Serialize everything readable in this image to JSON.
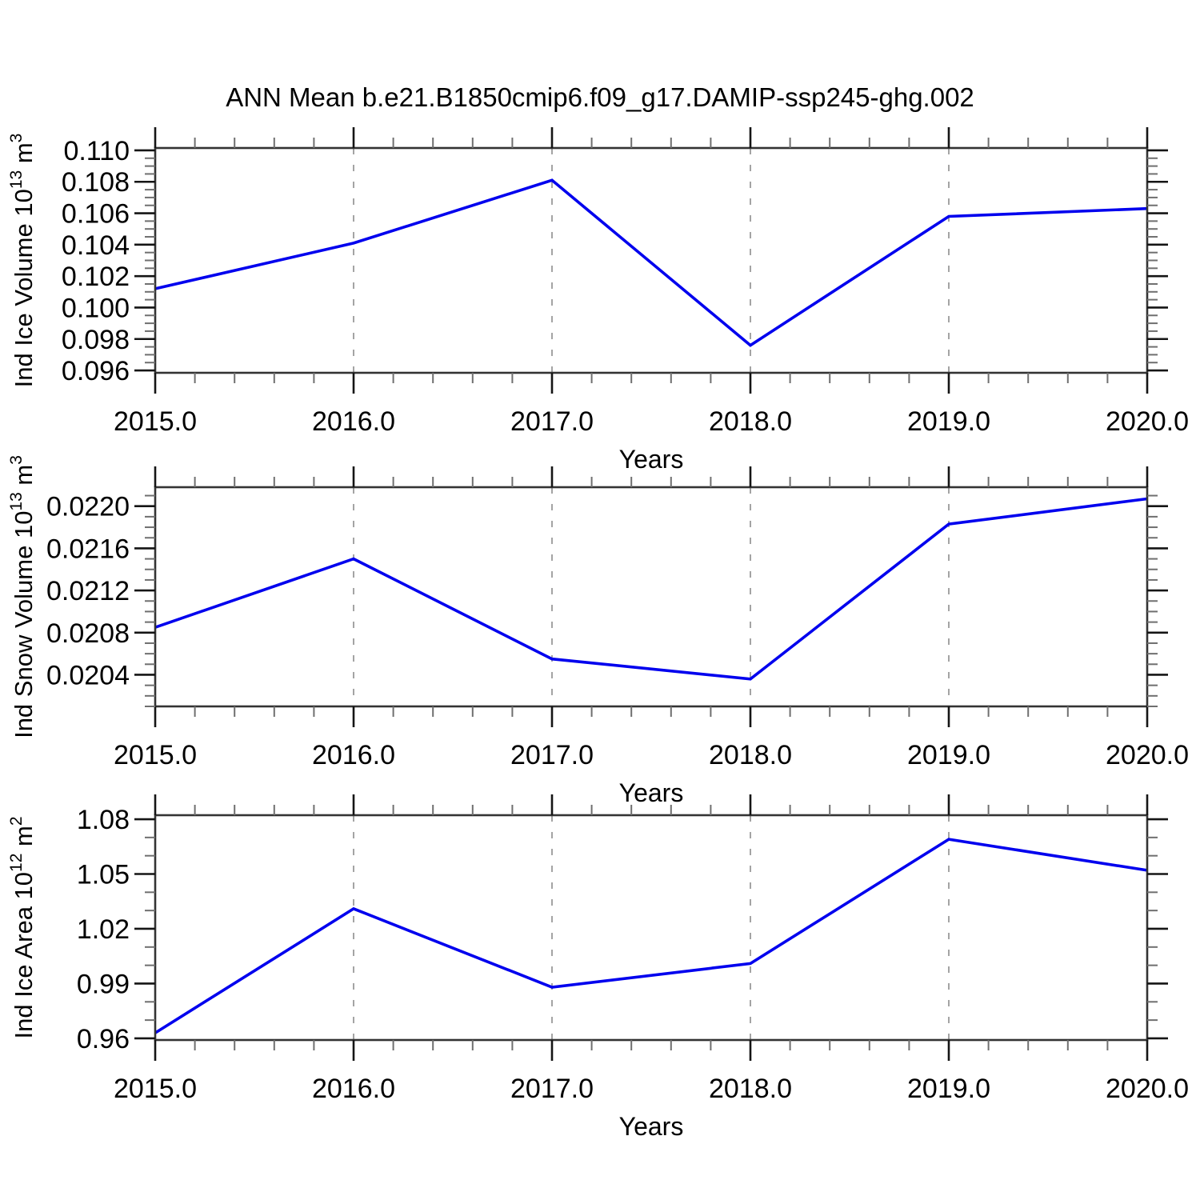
{
  "title": "ANN Mean b.e21.B1850cmip6.f09_g17.DAMIP-ssp245-ghg.002",
  "background_color": "#ffffff",
  "text_color": "#000000",
  "chart_data": [
    {
      "type": "line",
      "name": "ind-ice-volume",
      "x": [
        2015,
        2016,
        2017,
        2018,
        2019,
        2020
      ],
      "values": [
        0.1012,
        0.1041,
        0.1081,
        0.0976,
        0.1058,
        0.1063
      ],
      "ylabel": "Ind Ice Volume 10^13 m^3",
      "ylabel_segments": [
        [
          "Ind Ice Volume 10",
          false
        ],
        [
          "13",
          true
        ],
        [
          " m",
          false
        ],
        [
          "3",
          true
        ]
      ],
      "xlabel": "Years",
      "xlim": [
        2015,
        2020
      ],
      "ylim": [
        0.09585,
        0.11015
      ],
      "ytick_values": [
        0.11,
        0.108,
        0.106,
        0.104,
        0.102,
        0.1,
        0.098,
        0.096
      ],
      "ytick_labels": [
        "0.110",
        "0.108",
        "0.106",
        "0.104",
        "0.102",
        "0.100",
        "0.098",
        "0.096"
      ],
      "ytick_minor_step": 0.0005,
      "xtick_values": [
        2015,
        2016,
        2017,
        2018,
        2019,
        2020
      ],
      "xtick_labels": [
        "2015.0",
        "2016.0",
        "2017.0",
        "2018.0",
        "2019.0",
        "2020.0"
      ],
      "xtick_minor_step": 0.2,
      "grid_x": [
        2016,
        2017,
        2018,
        2019
      ],
      "grid_style": "dashed",
      "legend": "none",
      "line_color": "#0000ee"
    },
    {
      "type": "line",
      "name": "ind-snow-volume",
      "x": [
        2015,
        2016,
        2017,
        2018,
        2019,
        2020
      ],
      "values": [
        0.02085,
        0.0215,
        0.02055,
        0.02036,
        0.02183,
        0.02207
      ],
      "ylabel": "Ind Snow Volume 10^13 m^3",
      "ylabel_segments": [
        [
          "Ind Snow Volume 10",
          false
        ],
        [
          "13",
          true
        ],
        [
          " m",
          false
        ],
        [
          "3",
          true
        ]
      ],
      "xlabel": "Years",
      "xlim": [
        2015,
        2020
      ],
      "ylim": [
        0.0201,
        0.02218
      ],
      "ytick_values": [
        0.022,
        0.0216,
        0.0212,
        0.0208,
        0.0204
      ],
      "ytick_labels": [
        "0.0220",
        "0.0216",
        "0.0212",
        "0.0208",
        "0.0204"
      ],
      "ytick_minor_step": 0.0001,
      "xtick_values": [
        2015,
        2016,
        2017,
        2018,
        2019,
        2020
      ],
      "xtick_labels": [
        "2015.0",
        "2016.0",
        "2017.0",
        "2018.0",
        "2019.0",
        "2020.0"
      ],
      "xtick_minor_step": 0.2,
      "grid_x": [
        2016,
        2017,
        2018,
        2019
      ],
      "grid_style": "dashed",
      "legend": "none",
      "line_color": "#0000ee"
    },
    {
      "type": "line",
      "name": "ind-ice-area",
      "x": [
        2015,
        2016,
        2017,
        2018,
        2019,
        2020
      ],
      "values": [
        0.963,
        1.031,
        0.988,
        1.001,
        1.069,
        1.052
      ],
      "ylabel": "Ind Ice Area 10^12 m^2",
      "ylabel_segments": [
        [
          "Ind Ice Area 10",
          false
        ],
        [
          "12",
          true
        ],
        [
          " m",
          false
        ],
        [
          "2",
          true
        ]
      ],
      "xlabel": "Years",
      "xlim": [
        2015,
        2020
      ],
      "ylim": [
        0.9591,
        1.0822
      ],
      "ytick_values": [
        1.08,
        1.05,
        1.02,
        0.99,
        0.96
      ],
      "ytick_labels": [
        "1.08",
        "1.05",
        "1.02",
        "0.99",
        "0.96"
      ],
      "ytick_minor_step": 0.01,
      "xtick_values": [
        2015,
        2016,
        2017,
        2018,
        2019,
        2020
      ],
      "xtick_labels": [
        "2015.0",
        "2016.0",
        "2017.0",
        "2018.0",
        "2019.0",
        "2020.0"
      ],
      "xtick_minor_step": 0.2,
      "grid_x": [
        2016,
        2017,
        2018,
        2019
      ],
      "grid_style": "dashed",
      "legend": "none",
      "line_color": "#0000ee"
    }
  ]
}
